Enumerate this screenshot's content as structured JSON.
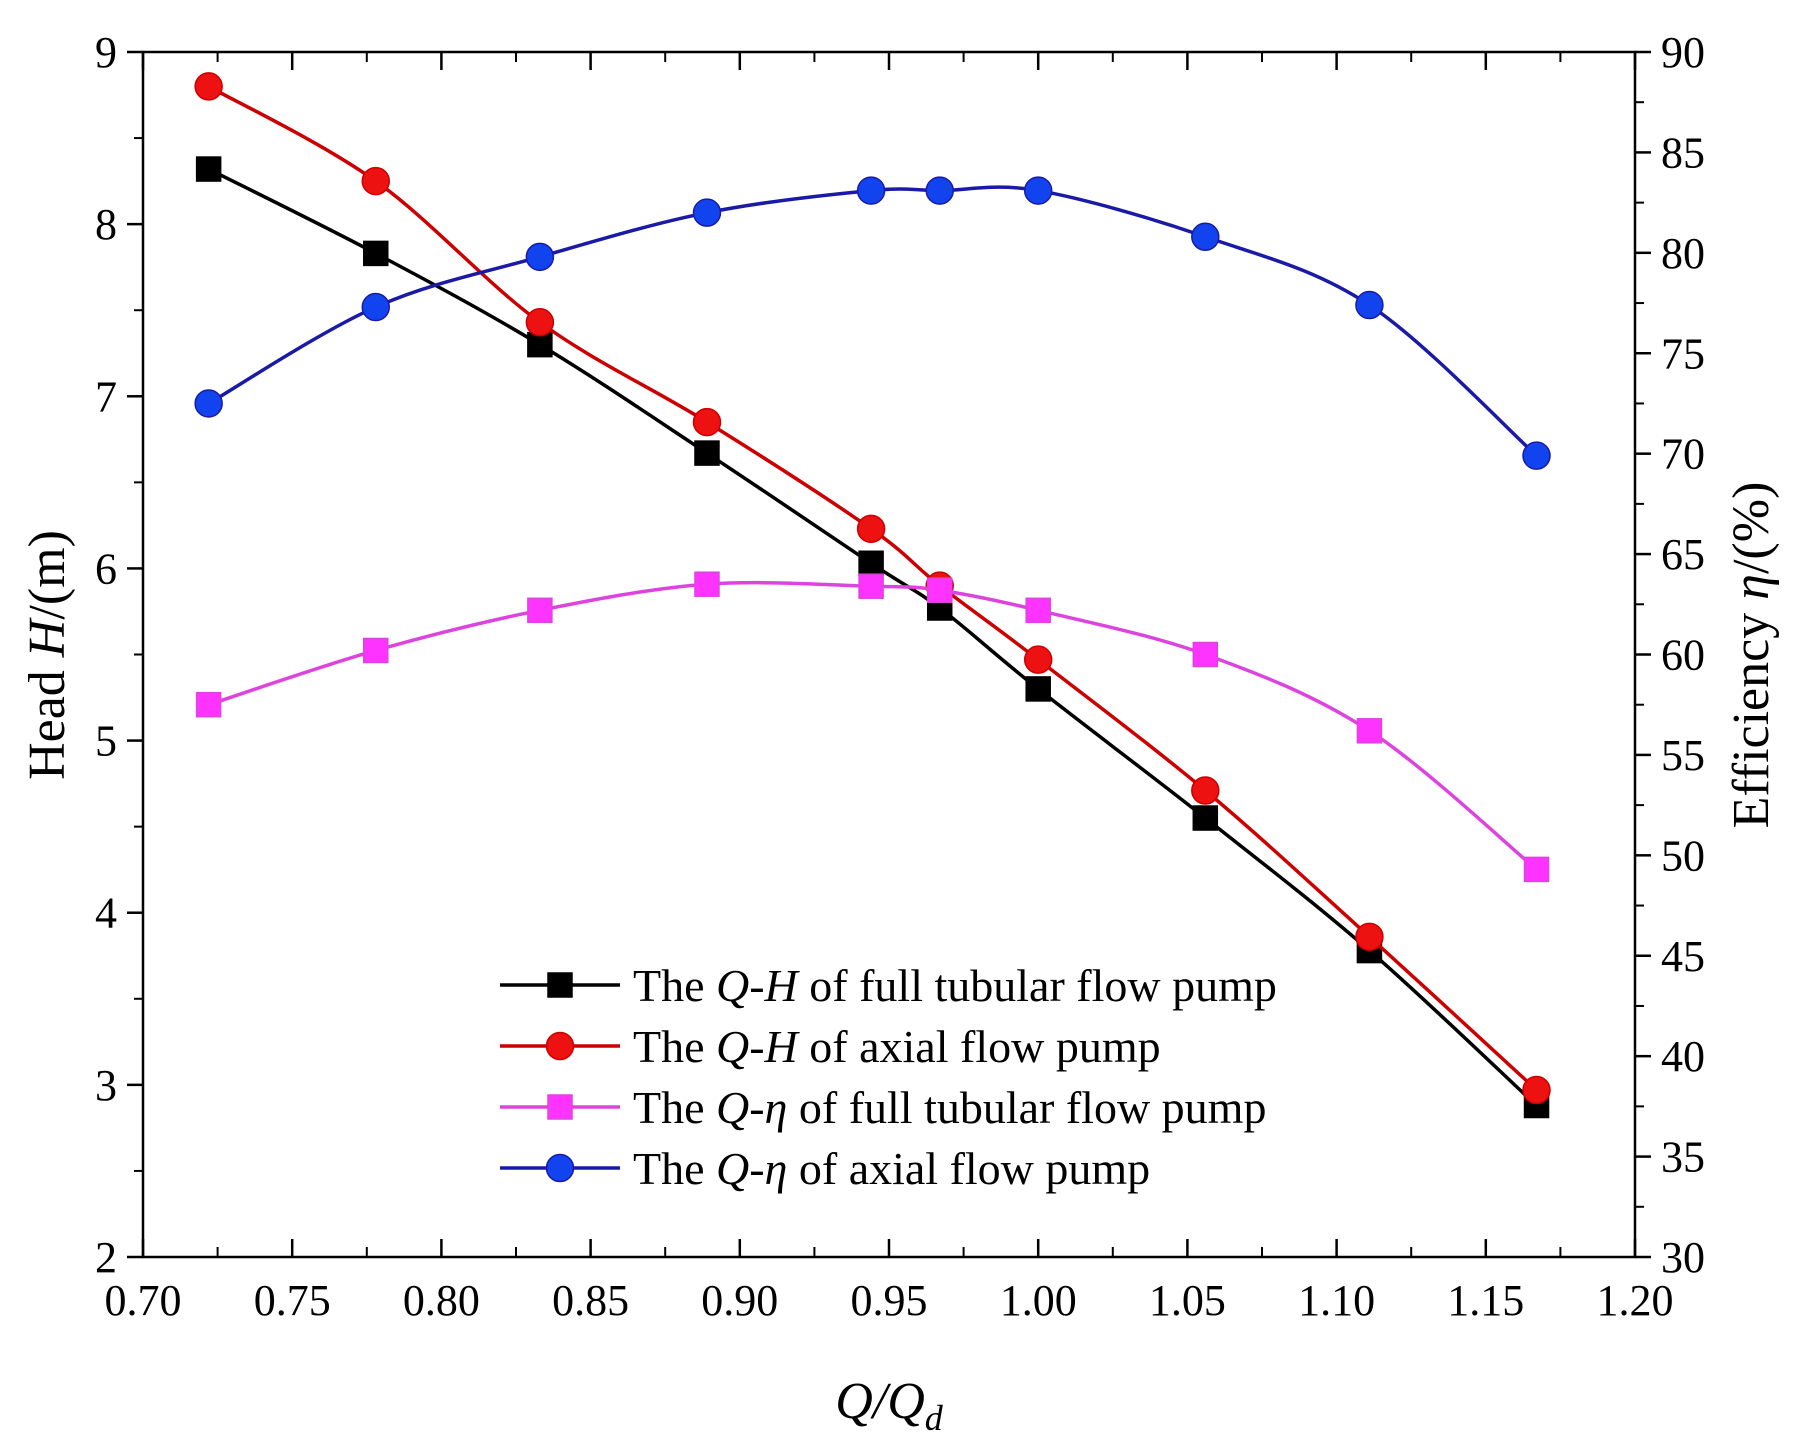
{
  "chart_data": {
    "type": "line",
    "title": "",
    "xlabel": "Q/Qd",
    "xlabel_parts": {
      "base": "Q/Q",
      "subscript": "d"
    },
    "ylabel": "Head H/(m)",
    "ylabel_parts": {
      "prefix": "Head ",
      "var": "H",
      "suffix": "/(m)"
    },
    "y2label": "Efficiency η/(%)",
    "y2label_parts": {
      "prefix": "Efficiency ",
      "var": "η",
      "suffix": "/(%)"
    },
    "xlim": [
      0.7,
      1.2
    ],
    "ylim": [
      2,
      9
    ],
    "y2lim": [
      30,
      90
    ],
    "xticks": [
      "0.70",
      "0.75",
      "0.80",
      "0.85",
      "0.90",
      "0.95",
      "1.00",
      "1.05",
      "1.10",
      "1.15",
      "1.20"
    ],
    "yticks": [
      "2",
      "3",
      "4",
      "5",
      "6",
      "7",
      "8",
      "9"
    ],
    "y2ticks": [
      "30",
      "35",
      "40",
      "45",
      "50",
      "55",
      "60",
      "65",
      "70",
      "75",
      "80",
      "85",
      "90"
    ],
    "legend_position": "lower-left",
    "series": [
      {
        "name": "The Q-H of full tubular flow pump",
        "legend": {
          "pre": "The ",
          "var": "Q-H",
          "post": " of full tubular flow pump"
        },
        "axis": "left",
        "color": "#000000",
        "marker": "square",
        "x": [
          0.722,
          0.778,
          0.833,
          0.889,
          0.944,
          0.967,
          1.0,
          1.056,
          1.111,
          1.167
        ],
        "values": [
          8.32,
          7.83,
          7.3,
          6.67,
          6.03,
          5.77,
          5.3,
          4.55,
          3.78,
          2.88
        ]
      },
      {
        "name": "The Q-H of axial flow pump",
        "legend": {
          "pre": "The ",
          "var": "Q-H",
          "post": " of axial flow pump"
        },
        "axis": "left",
        "color": "#cc0000",
        "marker_color": "#ee1111",
        "marker": "circle",
        "x": [
          0.722,
          0.778,
          0.833,
          0.889,
          0.944,
          0.967,
          1.0,
          1.056,
          1.111,
          1.167
        ],
        "values": [
          8.8,
          8.25,
          7.43,
          6.85,
          6.23,
          5.9,
          5.47,
          4.71,
          3.86,
          2.97
        ]
      },
      {
        "name": "The Q-η of full tubular flow pump",
        "legend": {
          "pre": "The ",
          "var": "Q-η",
          "post": " of full tubular flow pump"
        },
        "axis": "right",
        "color": "#dd44dd",
        "marker_color": "#ff33ff",
        "marker": "square",
        "x": [
          0.722,
          0.778,
          0.833,
          0.889,
          0.944,
          0.967,
          1.0,
          1.056,
          1.111,
          1.167
        ],
        "values": [
          57.5,
          60.2,
          62.2,
          63.5,
          63.4,
          63.2,
          62.2,
          60.0,
          56.2,
          49.3
        ]
      },
      {
        "name": "The Q-η of axial flow pump",
        "legend": {
          "pre": "The ",
          "var": "Q-η",
          "post": " of axial flow pump"
        },
        "axis": "right",
        "color": "#1a1aa6",
        "marker_color": "#1144ee",
        "marker": "circle",
        "x": [
          0.722,
          0.778,
          0.833,
          0.889,
          0.944,
          0.967,
          1.0,
          1.056,
          1.111,
          1.167
        ],
        "values": [
          72.5,
          77.3,
          79.8,
          82.0,
          83.1,
          83.1,
          83.1,
          80.8,
          77.4,
          69.9
        ]
      }
    ]
  }
}
